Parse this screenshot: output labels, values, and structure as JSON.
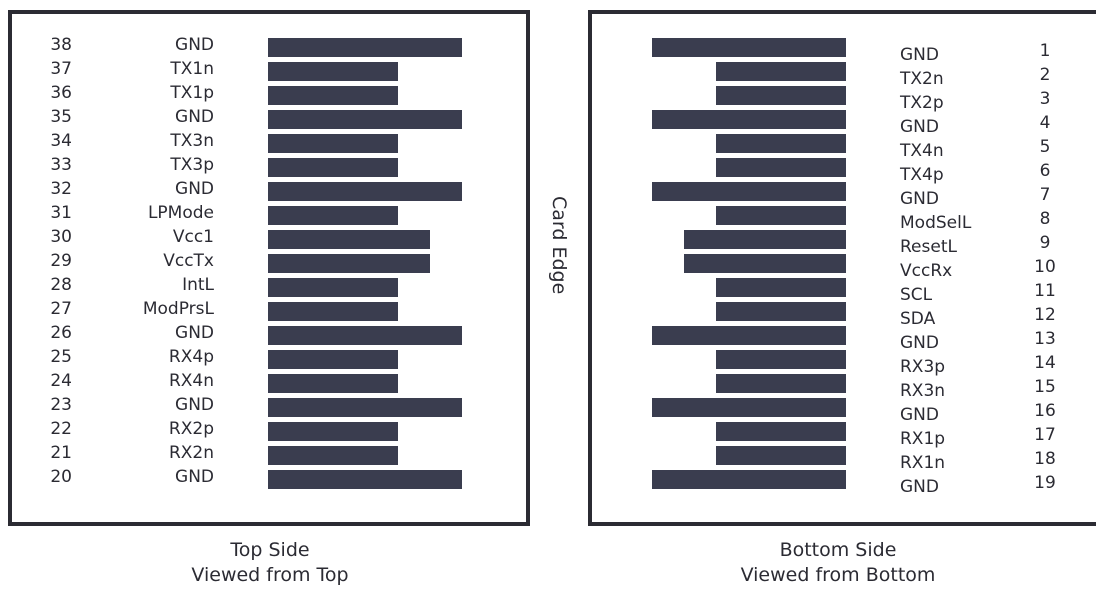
{
  "edge_label": "Card Edge",
  "top_side": {
    "caption_line1": "Top Side",
    "caption_line2": "Viewed from Top",
    "pins": [
      {
        "num": "38",
        "name": "GND",
        "pad": "long"
      },
      {
        "num": "37",
        "name": "TX1n",
        "pad": "short"
      },
      {
        "num": "36",
        "name": "TX1p",
        "pad": "short"
      },
      {
        "num": "35",
        "name": "GND",
        "pad": "long"
      },
      {
        "num": "34",
        "name": "TX3n",
        "pad": "short"
      },
      {
        "num": "33",
        "name": "TX3p",
        "pad": "short"
      },
      {
        "num": "32",
        "name": "GND",
        "pad": "long"
      },
      {
        "num": "31",
        "name": "LPMode",
        "pad": "short"
      },
      {
        "num": "30",
        "name": "Vcc1",
        "pad": "medium"
      },
      {
        "num": "29",
        "name": "VccTx",
        "pad": "medium"
      },
      {
        "num": "28",
        "name": "IntL",
        "pad": "short"
      },
      {
        "num": "27",
        "name": "ModPrsL",
        "pad": "short"
      },
      {
        "num": "26",
        "name": "GND",
        "pad": "long"
      },
      {
        "num": "25",
        "name": "RX4p",
        "pad": "short"
      },
      {
        "num": "24",
        "name": "RX4n",
        "pad": "short"
      },
      {
        "num": "23",
        "name": "GND",
        "pad": "long"
      },
      {
        "num": "22",
        "name": "RX2p",
        "pad": "short"
      },
      {
        "num": "21",
        "name": "RX2n",
        "pad": "short"
      },
      {
        "num": "20",
        "name": "GND",
        "pad": "long"
      }
    ]
  },
  "bottom_side": {
    "caption_line1": "Bottom Side",
    "caption_line2": "Viewed from Bottom",
    "pins": [
      {
        "num": "1",
        "name": "GND",
        "pad": "long"
      },
      {
        "num": "2",
        "name": "TX2n",
        "pad": "short"
      },
      {
        "num": "3",
        "name": "TX2p",
        "pad": "short"
      },
      {
        "num": "4",
        "name": "GND",
        "pad": "long"
      },
      {
        "num": "5",
        "name": "TX4n",
        "pad": "short"
      },
      {
        "num": "6",
        "name": "TX4p",
        "pad": "short"
      },
      {
        "num": "7",
        "name": "GND",
        "pad": "long"
      },
      {
        "num": "8",
        "name": "ModSelL",
        "pad": "short"
      },
      {
        "num": "9",
        "name": "ResetL",
        "pad": "medium"
      },
      {
        "num": "10",
        "name": "VccRx",
        "pad": "medium"
      },
      {
        "num": "11",
        "name": "SCL",
        "pad": "short"
      },
      {
        "num": "12",
        "name": "SDA",
        "pad": "short"
      },
      {
        "num": "13",
        "name": "GND",
        "pad": "long"
      },
      {
        "num": "14",
        "name": "RX3p",
        "pad": "short"
      },
      {
        "num": "15",
        "name": "RX3n",
        "pad": "short"
      },
      {
        "num": "16",
        "name": "GND",
        "pad": "long"
      },
      {
        "num": "17",
        "name": "RX1p",
        "pad": "short"
      },
      {
        "num": "18",
        "name": "RX1n",
        "pad": "short"
      },
      {
        "num": "19",
        "name": "GND",
        "pad": "long"
      }
    ]
  }
}
